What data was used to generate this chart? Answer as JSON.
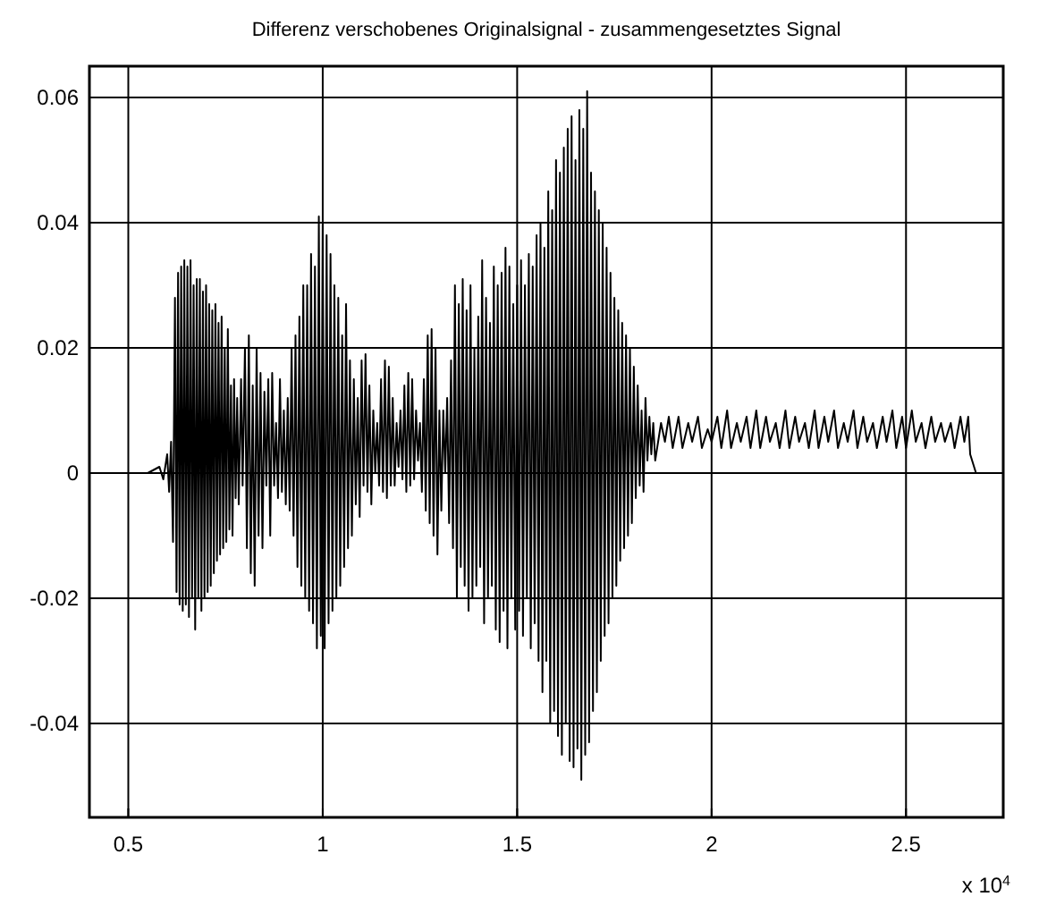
{
  "chart_data": {
    "type": "line",
    "title": "Differenz verschobenes Originalsignal - zusammengesetztes Signal",
    "annotations": [
      "x 10$^{4}$"
    ],
    "xlim": [
      0.4,
      2.75
    ],
    "xticks": [
      0.5,
      1,
      1.5,
      2,
      2.5
    ],
    "ylim": [
      -0.055,
      0.065
    ],
    "yticks": [
      {
        "value": -0.04,
        "label": "-0.04"
      },
      {
        "value": -0.02,
        "label": "-0.02"
      },
      0,
      {
        "value": 0.02,
        "label": "0.02"
      },
      {
        "value": 0.04,
        "label": "0.04"
      },
      {
        "value": 0.06,
        "label": "0.06"
      }
    ],
    "grid": true,
    "marker": "none",
    "line_style": "solid",
    "series": [
      {
        "color": "#000000",
        "x": [
          0.5,
          0.55,
          0.58,
          0.59,
          0.6,
          0.605,
          0.61,
          0.615,
          0.62,
          0.624,
          0.628,
          0.632,
          0.636,
          0.64,
          0.644,
          0.648,
          0.652,
          0.656,
          0.66,
          0.664,
          0.668,
          0.672,
          0.676,
          0.68,
          0.684,
          0.688,
          0.692,
          0.696,
          0.7,
          0.704,
          0.708,
          0.712,
          0.716,
          0.72,
          0.724,
          0.728,
          0.732,
          0.736,
          0.74,
          0.744,
          0.748,
          0.752,
          0.756,
          0.76,
          0.764,
          0.768,
          0.772,
          0.776,
          0.78,
          0.784,
          0.79,
          0.794,
          0.8,
          0.805,
          0.81,
          0.815,
          0.82,
          0.825,
          0.83,
          0.835,
          0.84,
          0.845,
          0.85,
          0.855,
          0.86,
          0.865,
          0.87,
          0.875,
          0.88,
          0.885,
          0.89,
          0.895,
          0.9,
          0.905,
          0.91,
          0.915,
          0.92,
          0.925,
          0.93,
          0.935,
          0.94,
          0.945,
          0.95,
          0.955,
          0.96,
          0.965,
          0.97,
          0.975,
          0.98,
          0.985,
          0.99,
          0.995,
          1.0,
          1.005,
          1.01,
          1.015,
          1.02,
          1.025,
          1.03,
          1.035,
          1.04,
          1.045,
          1.05,
          1.055,
          1.06,
          1.065,
          1.07,
          1.075,
          1.08,
          1.085,
          1.09,
          1.095,
          1.1,
          1.105,
          1.11,
          1.115,
          1.12,
          1.125,
          1.13,
          1.135,
          1.14,
          1.145,
          1.15,
          1.155,
          1.16,
          1.165,
          1.17,
          1.175,
          1.18,
          1.185,
          1.19,
          1.195,
          1.2,
          1.205,
          1.21,
          1.215,
          1.22,
          1.225,
          1.23,
          1.235,
          1.24,
          1.245,
          1.25,
          1.255,
          1.26,
          1.265,
          1.27,
          1.275,
          1.28,
          1.285,
          1.29,
          1.295,
          1.3,
          1.305,
          1.31,
          1.315,
          1.32,
          1.325,
          1.33,
          1.335,
          1.34,
          1.345,
          1.35,
          1.355,
          1.36,
          1.365,
          1.37,
          1.375,
          1.38,
          1.385,
          1.39,
          1.395,
          1.4,
          1.405,
          1.41,
          1.415,
          1.42,
          1.425,
          1.43,
          1.435,
          1.44,
          1.445,
          1.45,
          1.455,
          1.46,
          1.465,
          1.47,
          1.475,
          1.48,
          1.485,
          1.49,
          1.495,
          1.5,
          1.505,
          1.51,
          1.515,
          1.52,
          1.525,
          1.53,
          1.535,
          1.54,
          1.545,
          1.55,
          1.555,
          1.56,
          1.565,
          1.57,
          1.575,
          1.58,
          1.585,
          1.59,
          1.595,
          1.6,
          1.605,
          1.61,
          1.615,
          1.62,
          1.625,
          1.63,
          1.635,
          1.64,
          1.645,
          1.65,
          1.655,
          1.66,
          1.665,
          1.67,
          1.675,
          1.68,
          1.685,
          1.69,
          1.695,
          1.7,
          1.705,
          1.71,
          1.715,
          1.72,
          1.725,
          1.73,
          1.735,
          1.74,
          1.745,
          1.75,
          1.755,
          1.76,
          1.765,
          1.77,
          1.775,
          1.78,
          1.785,
          1.79,
          1.795,
          1.8,
          1.805,
          1.81,
          1.815,
          1.82,
          1.825,
          1.83,
          1.835,
          1.84,
          1.845,
          1.85,
          1.855,
          1.87,
          1.88,
          1.89,
          1.9,
          1.915,
          1.925,
          1.94,
          1.95,
          1.965,
          1.975,
          1.99,
          2.0,
          2.015,
          2.025,
          2.04,
          2.05,
          2.065,
          2.075,
          2.09,
          2.1,
          2.115,
          2.125,
          2.14,
          2.15,
          2.165,
          2.175,
          2.19,
          2.2,
          2.215,
          2.225,
          2.24,
          2.25,
          2.265,
          2.275,
          2.29,
          2.3,
          2.315,
          2.325,
          2.34,
          2.35,
          2.365,
          2.375,
          2.39,
          2.4,
          2.415,
          2.425,
          2.44,
          2.45,
          2.465,
          2.475,
          2.49,
          2.5,
          2.515,
          2.525,
          2.54,
          2.55,
          2.565,
          2.575,
          2.59,
          2.6,
          2.615,
          2.625,
          2.64,
          2.65,
          2.66,
          2.665,
          2.675,
          2.68,
          2.7,
          2.75
        ],
        "values": [
          0,
          0,
          0.001,
          -0.001,
          0.003,
          -0.003,
          0.005,
          -0.011,
          0.028,
          -0.019,
          0.032,
          -0.021,
          0.033,
          -0.022,
          0.034,
          -0.021,
          0.033,
          -0.023,
          0.034,
          -0.02,
          0.03,
          -0.025,
          0.031,
          -0.02,
          0.031,
          -0.022,
          0.029,
          -0.02,
          0.03,
          -0.019,
          0.027,
          -0.018,
          0.026,
          -0.016,
          0.027,
          -0.014,
          0.024,
          -0.013,
          0.025,
          -0.012,
          0.02,
          -0.011,
          0.023,
          -0.009,
          0.014,
          -0.01,
          0.015,
          -0.004,
          0.012,
          -0.005,
          0.015,
          -0.002,
          0.02,
          -0.012,
          0.022,
          -0.016,
          0.014,
          -0.018,
          0.02,
          -0.01,
          0.016,
          -0.012,
          0.013,
          -0.002,
          0.015,
          -0.01,
          0.016,
          -0.002,
          0.008,
          -0.004,
          0.015,
          -0.003,
          0.01,
          -0.005,
          0.012,
          -0.006,
          0.02,
          -0.01,
          0.022,
          -0.015,
          0.025,
          -0.018,
          0.03,
          -0.02,
          0.03,
          -0.022,
          0.035,
          -0.024,
          0.033,
          -0.028,
          0.041,
          -0.026,
          0.04,
          -0.028,
          0.038,
          -0.024,
          0.035,
          -0.022,
          0.03,
          -0.02,
          0.028,
          -0.018,
          0.022,
          -0.015,
          0.027,
          -0.012,
          0.018,
          -0.01,
          0.015,
          -0.005,
          0.012,
          -0.007,
          0.018,
          -0.002,
          0.019,
          -0.003,
          0.014,
          -0.005,
          0.01,
          0,
          0.008,
          -0.002,
          0.015,
          -0.003,
          0.018,
          -0.004,
          0.017,
          -0.002,
          0.012,
          -0.002,
          0.008,
          0.001,
          0.01,
          -0.001,
          0.014,
          -0.003,
          0.016,
          -0.002,
          0.015,
          -0.001,
          0.01,
          0.002,
          0.008,
          -0.003,
          0.015,
          -0.006,
          0.022,
          -0.008,
          0.023,
          -0.01,
          0.02,
          -0.013,
          0.01,
          -0.006,
          0.01,
          0,
          0.012,
          -0.008,
          0.018,
          -0.012,
          0.03,
          -0.02,
          0.027,
          -0.015,
          0.031,
          -0.018,
          0.026,
          -0.022,
          0.03,
          -0.02,
          0.02,
          -0.018,
          0.025,
          -0.015,
          0.034,
          -0.024,
          0.028,
          -0.02,
          0.024,
          -0.018,
          0.033,
          -0.025,
          0.03,
          -0.027,
          0.032,
          -0.022,
          0.036,
          -0.028,
          0.033,
          -0.02,
          0.027,
          -0.025,
          0.03,
          -0.022,
          0.034,
          -0.026,
          0.03,
          -0.02,
          0.035,
          -0.028,
          0.033,
          -0.024,
          0.038,
          -0.03,
          0.04,
          -0.035,
          0.036,
          -0.03,
          0.045,
          -0.04,
          0.042,
          -0.038,
          0.05,
          -0.042,
          0.048,
          -0.045,
          0.052,
          -0.04,
          0.055,
          -0.046,
          0.057,
          -0.047,
          0.05,
          -0.044,
          0.058,
          -0.049,
          0.055,
          -0.045,
          0.061,
          -0.043,
          0.048,
          -0.038,
          0.045,
          -0.035,
          0.042,
          -0.03,
          0.04,
          -0.026,
          0.036,
          -0.024,
          0.032,
          -0.02,
          0.028,
          -0.018,
          0.026,
          -0.014,
          0.024,
          -0.012,
          0.022,
          -0.01,
          0.02,
          -0.008,
          0.017,
          -0.004,
          0.014,
          -0.002,
          0.01,
          -0.003,
          0.012,
          0.002,
          0.009,
          0.003,
          0.008,
          0.002,
          0.008,
          0.005,
          0.009,
          0.004,
          0.009,
          0.004,
          0.008,
          0.005,
          0.009,
          0.004,
          0.007,
          0.005,
          0.009,
          0.004,
          0.01,
          0.004,
          0.008,
          0.005,
          0.009,
          0.004,
          0.01,
          0.004,
          0.009,
          0.005,
          0.008,
          0.004,
          0.01,
          0.004,
          0.009,
          0.005,
          0.008,
          0.004,
          0.01,
          0.004,
          0.009,
          0.005,
          0.01,
          0.004,
          0.008,
          0.005,
          0.01,
          0.004,
          0.009,
          0.005,
          0.008,
          0.004,
          0.009,
          0.005,
          0.01,
          0.004,
          0.009,
          0.004,
          0.01,
          0.005,
          0.008,
          0.004,
          0.009,
          0.005,
          0.008,
          0.005,
          0.008,
          0.004,
          0.009,
          0.005,
          0.009,
          0.003,
          0.001,
          0,
          0,
          0
        ]
      }
    ]
  }
}
